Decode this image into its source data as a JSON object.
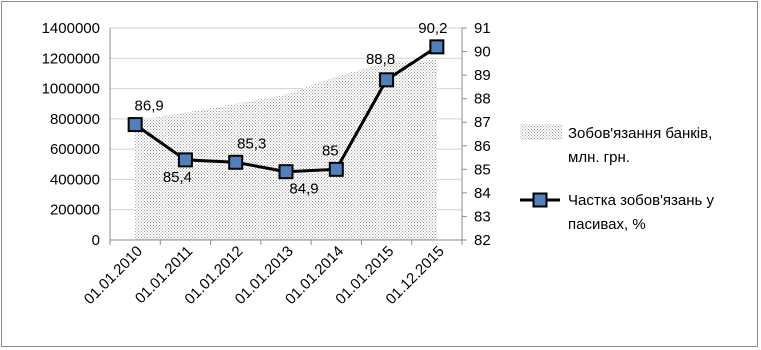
{
  "chart_data": {
    "type": "area+line",
    "categories": [
      "01.01.2010",
      "01.01.2011",
      "01.01.2012",
      "01.01.2013",
      "01.01.2014",
      "01.01.2015",
      "01.12.2015"
    ],
    "series": [
      {
        "name": "Зобов'язання банків, млн. грн.",
        "name_lines": [
          "Зобов'язання банків,",
          "млн. грн."
        ],
        "type": "area",
        "axis": "left",
        "color": "#c8c8c8",
        "values": [
          790000,
          840000,
          900000,
          960000,
          1080000,
          1170000,
          1190000
        ]
      },
      {
        "name": "Частка зобов'язань у пасивах, %",
        "name_lines": [
          "Частка зобов'язань у",
          "пасивах, %"
        ],
        "type": "line",
        "axis": "right",
        "color": "#000000",
        "marker_color": "#4f81bd",
        "values": [
          86.9,
          85.4,
          85.3,
          84.9,
          85,
          88.8,
          90.2
        ],
        "labels": [
          "86,9",
          "85,4",
          "85,3",
          "84,9",
          "85",
          "88,8",
          "90,2"
        ]
      }
    ],
    "y_left": {
      "ylim": [
        0,
        1400000
      ],
      "ticks": [
        "0",
        "200000",
        "400000",
        "600000",
        "800000",
        "1000000",
        "1200000",
        "1400000"
      ]
    },
    "y_right": {
      "ylim": [
        82,
        91
      ],
      "ticks": [
        "82",
        "83",
        "84",
        "85",
        "86",
        "87",
        "88",
        "89",
        "90",
        "91"
      ]
    },
    "grid": true,
    "legend": "right"
  }
}
